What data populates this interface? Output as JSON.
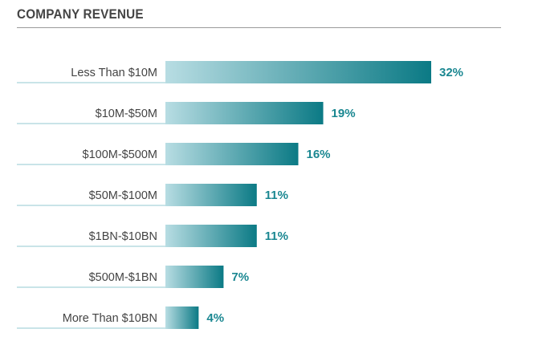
{
  "title": "COMPANY REVENUE",
  "colors": {
    "bar_light": "#b8dde3",
    "bar_dark": "#0b7a85",
    "value_text": "#1a8791",
    "underline": "#a9d4db"
  },
  "chart_data": {
    "type": "bar",
    "orientation": "horizontal",
    "title": "COMPANY REVENUE",
    "categories": [
      "Less Than $10M",
      "$10M-$50M",
      "$100M-$500M",
      "$50M-$100M",
      "$1BN-$10BN",
      "$500M-$1BN",
      "More Than $10BN"
    ],
    "values": [
      32,
      19,
      16,
      11,
      11,
      7,
      4
    ],
    "value_labels": [
      "32%",
      "19%",
      "16%",
      "11%",
      "11%",
      "7%",
      "4%"
    ],
    "unit": "%",
    "xlim": [
      0,
      32
    ],
    "grid": false,
    "legend": false
  }
}
